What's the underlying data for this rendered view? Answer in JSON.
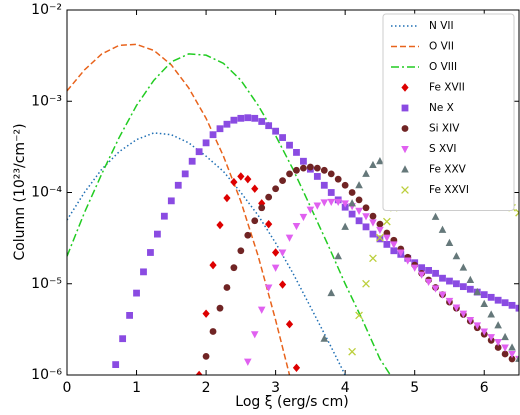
{
  "chart_data": {
    "type": "line",
    "xlabel": "Log ξ (erg/s cm)",
    "ylabel": "Column (10²³/cm⁻²)",
    "xlim": [
      0,
      6.5
    ],
    "ylim": [
      1e-06,
      0.01
    ],
    "yscale": "log",
    "xticks": [
      0,
      1,
      2,
      3,
      4,
      5,
      6
    ],
    "yticks": [
      {
        "value": 1e-06,
        "label": "10⁻⁶"
      },
      {
        "value": 1e-05,
        "label": "10⁻⁵"
      },
      {
        "value": 0.0001,
        "label": "10⁻⁴"
      },
      {
        "value": 0.001,
        "label": "10⁻³"
      },
      {
        "value": 0.01,
        "label": "10⁻²"
      }
    ],
    "legend": "upper right",
    "series": [
      {
        "name": "N VII",
        "color": "#1f6fb4",
        "linestyle": "dotted",
        "x": [
          0,
          0.25,
          0.5,
          0.75,
          1.0,
          1.25,
          1.5,
          1.75,
          2.0,
          2.25,
          2.5,
          2.75,
          3.0,
          3.25,
          3.5,
          3.75,
          4.0
        ],
        "values": [
          5e-05,
          0.0001,
          0.00018,
          0.00028,
          0.00038,
          0.00045,
          0.00043,
          0.00035,
          0.00025,
          0.00017,
          0.0001,
          5.6e-05,
          2.8e-05,
          1.3e-05,
          5.6e-06,
          2.4e-06,
          1e-06
        ]
      },
      {
        "name": "O VII",
        "color": "#e8631c",
        "linestyle": "dashed",
        "x": [
          0,
          0.25,
          0.5,
          0.75,
          1.0,
          1.25,
          1.5,
          1.75,
          2.0,
          2.25,
          2.5,
          2.75,
          3.0,
          3.2
        ],
        "values": [
          0.0013,
          0.0022,
          0.0033,
          0.0041,
          0.0042,
          0.0036,
          0.0025,
          0.0014,
          0.00065,
          0.00025,
          8e-05,
          2e-05,
          4e-06,
          1e-06
        ]
      },
      {
        "name": "O VIII",
        "color": "#22cc22",
        "linestyle": "dashdot",
        "x": [
          0,
          0.25,
          0.5,
          0.75,
          1.0,
          1.25,
          1.5,
          1.75,
          2.0,
          2.25,
          2.5,
          2.75,
          3.0,
          3.25,
          3.5,
          3.75,
          4.0,
          4.25,
          4.5,
          4.65
        ],
        "values": [
          2e-05,
          6e-05,
          0.00016,
          0.0004,
          0.0009,
          0.0017,
          0.0027,
          0.0033,
          0.0032,
          0.0026,
          0.0017,
          0.0009,
          0.00042,
          0.00018,
          7e-05,
          2.7e-05,
          1e-05,
          4e-06,
          1.5e-06,
          1e-06
        ]
      },
      {
        "name": "Fe XVII",
        "color": "#dd0000",
        "marker": "diamond",
        "x": [
          1.9,
          2.0,
          2.1,
          2.2,
          2.3,
          2.4,
          2.5,
          2.6,
          2.7,
          2.8,
          2.9,
          3.0,
          3.1,
          3.2,
          3.3
        ],
        "values": [
          1e-06,
          4.7e-06,
          1.6e-05,
          4.4e-05,
          8.7e-05,
          0.00013,
          0.00015,
          0.00014,
          0.00011,
          7.6e-05,
          4.5e-05,
          2.2e-05,
          9.8e-06,
          3.6e-06,
          1.2e-06
        ]
      },
      {
        "name": "Ne X",
        "color": "#8a4be2",
        "marker": "square",
        "x": [
          0.7,
          0.8,
          0.9,
          1.0,
          1.1,
          1.2,
          1.3,
          1.4,
          1.5,
          1.6,
          1.7,
          1.8,
          1.9,
          2.0,
          2.1,
          2.2,
          2.3,
          2.4,
          2.5,
          2.6,
          2.7,
          2.8,
          2.9,
          3.0,
          3.1,
          3.2,
          3.3,
          3.4,
          3.5,
          3.6,
          3.7,
          3.8,
          3.9,
          4.0,
          4.1,
          4.2,
          4.3,
          4.4,
          4.5,
          4.6,
          4.7,
          4.8,
          4.9,
          5.0,
          5.1,
          5.2,
          5.3,
          5.4,
          5.5,
          5.6,
          5.7,
          5.8,
          5.9,
          6.0,
          6.1,
          6.2,
          6.3,
          6.4,
          6.5
        ],
        "values": [
          1.3e-06,
          2.5e-06,
          4.5e-06,
          7.9e-06,
          1.35e-05,
          2.2e-05,
          3.5e-05,
          5.5e-05,
          8.1e-05,
          0.00012,
          0.00016,
          0.00022,
          0.00028,
          0.00035,
          0.00043,
          0.0005,
          0.00056,
          0.00062,
          0.00065,
          0.00066,
          0.00065,
          0.0006,
          0.00054,
          0.00047,
          0.0004,
          0.00033,
          0.000275,
          0.00022,
          0.00018,
          0.00015,
          0.00012,
          0.0001,
          8.3e-05,
          6.9e-05,
          5.8e-05,
          4.9e-05,
          4.2e-05,
          3.5e-05,
          3.1e-05,
          2.7e-05,
          2.3e-05,
          2.1e-05,
          1.9e-05,
          1.7e-05,
          1.5e-05,
          1.4e-05,
          1.3e-05,
          1.15e-05,
          1.07e-05,
          1e-05,
          9.3e-06,
          8.7e-06,
          8.1e-06,
          7.6e-06,
          7.1e-06,
          6.6e-06,
          6.2e-06,
          5.8e-06,
          5.4e-06
        ]
      },
      {
        "name": "Si XIV",
        "color": "#702424",
        "marker": "circle",
        "x": [
          2.0,
          2.1,
          2.2,
          2.3,
          2.4,
          2.5,
          2.6,
          2.7,
          2.8,
          2.9,
          3.0,
          3.1,
          3.2,
          3.3,
          3.4,
          3.5,
          3.6,
          3.7,
          3.8,
          3.9,
          4.0,
          4.1,
          4.2,
          4.3,
          4.4,
          4.5,
          4.6,
          4.7,
          4.8,
          4.9,
          5.0,
          5.1,
          5.2,
          5.3,
          5.4,
          5.5,
          5.6,
          5.7,
          5.8,
          5.9,
          6.0,
          6.1,
          6.2,
          6.3,
          6.4
        ],
        "values": [
          1.6e-06,
          3e-06,
          5.4e-06,
          9.1e-06,
          1.5e-05,
          2.3e-05,
          3.4e-05,
          4.9e-05,
          6.8e-05,
          8.9e-05,
          0.00011,
          0.000135,
          0.00016,
          0.000175,
          0.000185,
          0.00019,
          0.000185,
          0.000175,
          0.00016,
          0.00014,
          0.00012,
          0.0001,
          8.3e-05,
          6.8e-05,
          5.5e-05,
          4.5e-05,
          3.6e-05,
          3e-05,
          2.4e-05,
          1.95e-05,
          1.6e-05,
          1.3e-05,
          1.1e-05,
          9.1e-06,
          7.6e-06,
          6.3e-06,
          5.4e-06,
          4.6e-06,
          3.9e-06,
          3.3e-06,
          2.8e-06,
          2.4e-06,
          2e-06,
          1.7e-06,
          1.5e-06
        ]
      },
      {
        "name": "S XVI",
        "color": "#e060f0",
        "marker": "triangle-down",
        "x": [
          2.6,
          2.7,
          2.8,
          2.9,
          3.0,
          3.1,
          3.2,
          3.3,
          3.4,
          3.5,
          3.6,
          3.7,
          3.8,
          3.9,
          4.0,
          4.1,
          4.2,
          4.3,
          4.4,
          4.5,
          4.6,
          4.7,
          4.8,
          4.9,
          5.0,
          5.1,
          5.2,
          5.3,
          5.4,
          5.5,
          5.6,
          5.7,
          5.8,
          5.9,
          6.0,
          6.1,
          6.2,
          6.3,
          6.4,
          6.5
        ],
        "values": [
          1.4e-06,
          2.8e-06,
          5.2e-06,
          9.1e-06,
          1.5e-05,
          2.2e-05,
          3.2e-05,
          4.3e-05,
          5.4e-05,
          6.5e-05,
          7.2e-05,
          7.8e-05,
          7.9e-05,
          7.9e-05,
          7.6e-05,
          7.1e-05,
          6.3e-05,
          5.5e-05,
          4.7e-05,
          3.9e-05,
          3.2e-05,
          2.7e-05,
          2.2e-05,
          1.8e-05,
          1.5e-05,
          1.26e-05,
          1.05e-05,
          8.9e-06,
          7.6e-06,
          6.5e-06,
          5.5e-06,
          4.7e-06,
          4e-06,
          3.5e-06,
          3e-06,
          2.6e-06,
          2.3e-06,
          2e-06,
          1.7e-06,
          1.5e-06
        ]
      },
      {
        "name": "Fe XXV",
        "color": "#65787a",
        "marker": "triangle-up",
        "x": [
          3.7,
          3.8,
          3.9,
          4.0,
          4.1,
          4.2,
          4.3,
          4.4,
          4.5,
          4.6,
          4.7,
          4.8,
          4.9,
          5.0,
          5.1,
          5.2,
          5.3,
          5.4,
          5.5,
          5.6,
          5.7,
          5.8,
          5.9,
          6.0,
          6.1,
          6.2,
          6.3,
          6.4,
          6.5
        ],
        "values": [
          2.5e-06,
          7.9e-06,
          2e-05,
          4.2e-05,
          7.6e-05,
          0.00012,
          0.00016,
          0.0002,
          0.00022,
          0.00023,
          0.00022,
          0.0002,
          0.00017,
          0.00013,
          0.0001,
          7.4e-05,
          5.4e-05,
          3.9e-05,
          2.8e-05,
          2e-05,
          1.5e-05,
          1.1e-05,
          8.1e-06,
          6e-06,
          4.6e-06,
          3.5e-06,
          2.6e-06,
          2e-06,
          1.5e-06
        ]
      },
      {
        "name": "Fe XXVI",
        "color": "#bccf3c",
        "marker": "x",
        "x": [
          4.1,
          4.2,
          4.3,
          4.4,
          4.5,
          4.6,
          4.7,
          4.8,
          4.9,
          5.0,
          5.1,
          5.2,
          5.3,
          5.4,
          5.5,
          5.6,
          5.7,
          5.8,
          5.9,
          6.0,
          6.1,
          6.2,
          6.3,
          6.4,
          6.5
        ],
        "values": [
          1.8e-06,
          4.5e-06,
          1e-05,
          1.9e-05,
          3.2e-05,
          4.8e-05,
          6.8e-05,
          8.9e-05,
          0.00011,
          0.000126,
          0.00014,
          0.000145,
          0.00015,
          0.00015,
          0.00015,
          0.000145,
          0.00014,
          0.00013,
          0.00012,
          0.000107,
          9.5e-05,
          8.5e-05,
          7.6e-05,
          6.8e-05,
          6e-05
        ]
      }
    ]
  }
}
